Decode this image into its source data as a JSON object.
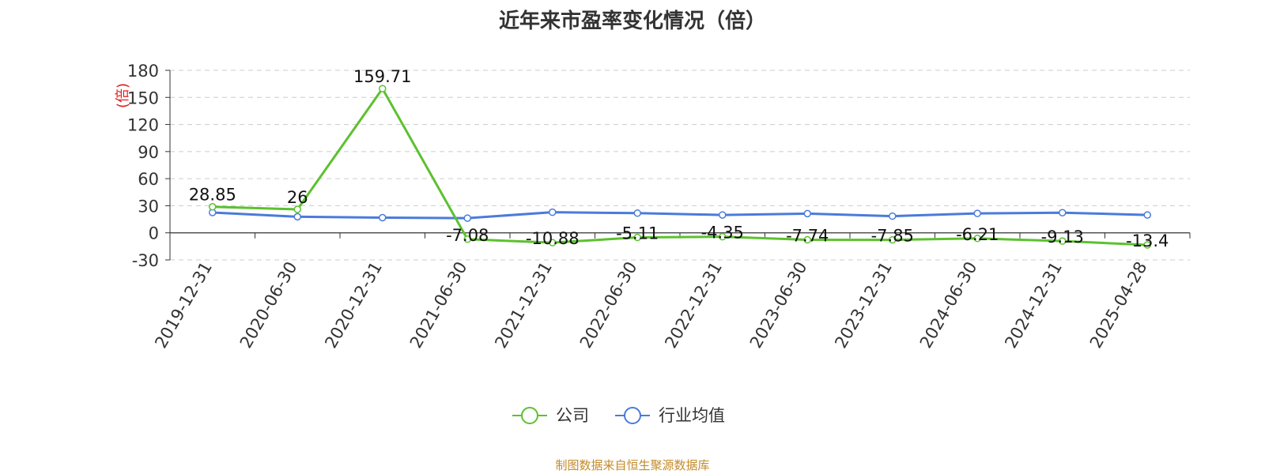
{
  "title": "近年来市盈率变化情况（倍）",
  "source": "制图数据来自恒生聚源数据库",
  "colors": {
    "company": "#5cc12f",
    "industry": "#4a7bdc",
    "ylabel": "#e0201f",
    "source": "#c38b2a",
    "grid": "#cccccc",
    "axis": "#333333"
  },
  "chart_data": {
    "type": "line",
    "ylabel": "(倍)",
    "ylim": [
      -30,
      180
    ],
    "yticks": [
      180,
      150,
      120,
      90,
      60,
      30,
      0,
      -30
    ],
    "grid": true,
    "legend_position": "bottom",
    "categories": [
      "2019-12-31",
      "2020-06-30",
      "2020-12-31",
      "2021-06-30",
      "2021-12-31",
      "2022-06-30",
      "2022-12-31",
      "2023-06-30",
      "2023-12-31",
      "2024-06-30",
      "2024-12-31",
      "2025-04-28"
    ],
    "series": [
      {
        "name": "公司",
        "values": [
          28.85,
          26,
          159.71,
          -7.08,
          -10.88,
          -5.11,
          -4.35,
          -7.74,
          -7.85,
          -6.21,
          -9.13,
          -13.4
        ],
        "labels": [
          "28.85",
          "26",
          "159.71",
          "-7.08",
          "-10.88",
          "-5.11",
          "-4.35",
          "-7.74",
          "-7.85",
          "-6.21",
          "-9.13",
          "-13.4"
        ]
      },
      {
        "name": "行业均值",
        "values": [
          22.5,
          17.8,
          16.8,
          16.3,
          22.8,
          21.8,
          19.8,
          21.3,
          18.5,
          21.5,
          22.3,
          19.8
        ]
      }
    ]
  }
}
